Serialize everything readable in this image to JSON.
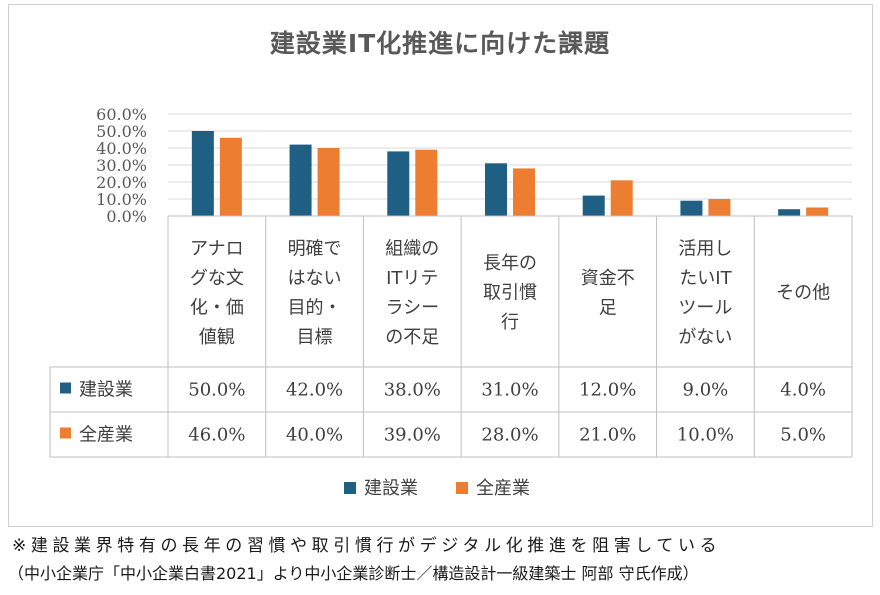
{
  "chart_data": {
    "type": "bar",
    "title": "建設業IT化推進に向けた課題",
    "categories": [
      [
        "アナロ",
        "グな文",
        "化・価",
        "値観"
      ],
      [
        "明確で",
        "はない",
        "目的・",
        "目標"
      ],
      [
        "組織の",
        "ITリテ",
        "ラシー",
        "の不足"
      ],
      [
        "長年の",
        "取引慣",
        "行"
      ],
      [
        "資金不",
        "足"
      ],
      [
        "活用し",
        "たいIT",
        "ツール",
        "がない"
      ],
      [
        "その他"
      ]
    ],
    "series": [
      {
        "name": "建設業",
        "color": "#1f5f84",
        "values": [
          50.0,
          42.0,
          38.0,
          31.0,
          12.0,
          9.0,
          4.0
        ],
        "labels": [
          "50.0%",
          "42.0%",
          "38.0%",
          "31.0%",
          "12.0%",
          "9.0%",
          "4.0%"
        ]
      },
      {
        "name": "全産業",
        "color": "#ed7d31",
        "values": [
          46.0,
          40.0,
          39.0,
          28.0,
          21.0,
          10.0,
          5.0
        ],
        "labels": [
          "46.0%",
          "40.0%",
          "39.0%",
          "28.0%",
          "21.0%",
          "10.0%",
          "5.0%"
        ]
      }
    ],
    "ylim": [
      0,
      60
    ],
    "yticks": [
      "0.0%",
      "10.0%",
      "20.0%",
      "30.0%",
      "40.0%",
      "50.0%",
      "60.0%"
    ],
    "legend": "bottom",
    "data_table": true
  },
  "notes": {
    "line1": "※建設業界特有の長年の習慣や取引慣行がデジタル化推進を阻害している",
    "line2": "（中小企業庁「中小企業白書2021」より中小企業診断士／構造設計一級建築士 阿部 守氏作成）"
  }
}
